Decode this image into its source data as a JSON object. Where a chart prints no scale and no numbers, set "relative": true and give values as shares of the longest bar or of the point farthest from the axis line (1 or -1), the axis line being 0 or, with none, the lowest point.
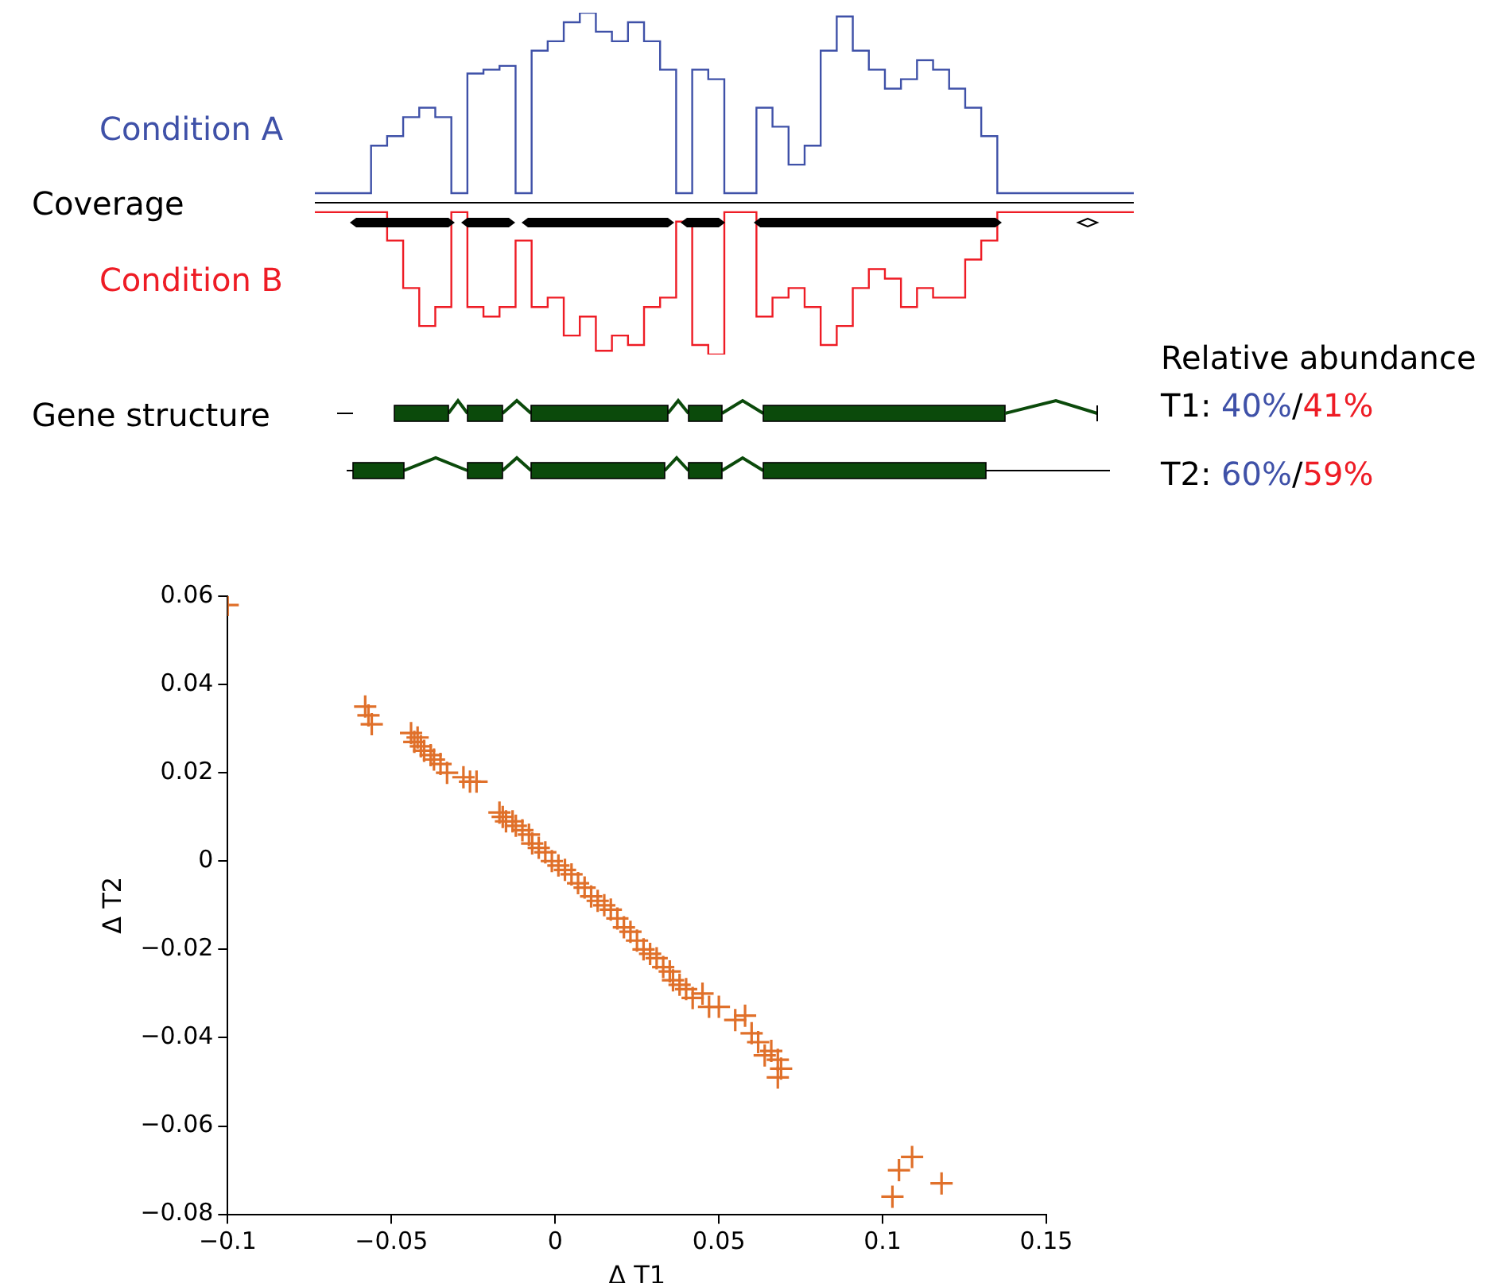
{
  "chart_data": [
    {
      "type": "step",
      "relative": true,
      "legend": false,
      "categories": [
        null,
        null,
        null,
        null,
        null,
        null,
        null,
        null,
        null,
        null,
        null,
        null,
        null,
        null,
        null,
        null,
        null,
        null,
        null,
        null,
        null,
        null,
        null,
        null,
        null,
        null,
        null,
        null,
        null,
        null,
        null,
        null,
        null,
        null,
        null,
        null,
        null,
        null,
        null,
        null,
        null,
        null,
        null,
        null,
        null,
        null,
        null,
        null,
        null,
        null,
        null,
        null
      ],
      "annotations": [
        "Coverage",
        "Gene structure",
        "Relative abundance",
        "T1: 40%/41%",
        "T2: 60%/59%"
      ],
      "series": [
        {
          "name": "Condition A",
          "color": "#3f51a8",
          "values": [
            0.05,
            0.05,
            0.05,
            0.05,
            0.3,
            0.35,
            0.45,
            0.5,
            0.45,
            0.05,
            0.68,
            0.7,
            0.72,
            0.05,
            0.8,
            0.85,
            0.95,
            1,
            0.9,
            0.85,
            0.95,
            0.85,
            0.7,
            0.05,
            0.7,
            0.65,
            0.05,
            0.05,
            0.5,
            0.4,
            0.2,
            0.3,
            0.8,
            0.98,
            0.8,
            0.7,
            0.6,
            0.65,
            0.75,
            0.7,
            0.6,
            0.5,
            0.35,
            0.05,
            0.05,
            0.05,
            0.05,
            0.05,
            0.05,
            0.05,
            0.05,
            0.05
          ]
        },
        {
          "name": "Condition B",
          "color": "#ee1c25",
          "values": [
            -0.05,
            -0.05,
            -0.05,
            -0.05,
            -0.05,
            -0.2,
            -0.45,
            -0.65,
            -0.55,
            -0.05,
            -0.55,
            -0.6,
            -0.55,
            -0.2,
            -0.55,
            -0.5,
            -0.7,
            -0.6,
            -0.78,
            -0.7,
            -0.75,
            -0.55,
            -0.5,
            -0.1,
            -0.75,
            -0.8,
            -0.05,
            -0.05,
            -0.6,
            -0.5,
            -0.45,
            -0.55,
            -0.75,
            -0.65,
            -0.45,
            -0.35,
            -0.4,
            -0.55,
            -0.45,
            -0.5,
            -0.5,
            -0.3,
            -0.2,
            -0.05,
            -0.05,
            -0.05,
            -0.05,
            -0.05,
            -0.05,
            -0.05,
            -0.05,
            -0.05
          ]
        }
      ]
    },
    {
      "type": "scatter",
      "xlabel": "Δ T1",
      "ylabel": "Δ T2",
      "marker": "cross",
      "grid": false,
      "legend": false,
      "xlim": [
        -0.1,
        0.15
      ],
      "xticks": [
        {
          "value": -0.1,
          "label": "−0.1"
        },
        {
          "value": -0.05,
          "label": "−0.05"
        },
        0,
        0.05,
        0.1,
        0.15
      ],
      "ylim": [
        -0.08,
        0.06
      ],
      "yticks": [
        {
          "value": -0.08,
          "label": "−0.08"
        },
        {
          "value": -0.06,
          "label": "−0.06"
        },
        {
          "value": -0.04,
          "label": "−0.04"
        },
        {
          "value": -0.02,
          "label": "−0.02"
        },
        0,
        0.02,
        0.04,
        0.06
      ],
      "series": [
        {
          "color": "#e0702a",
          "x": [
            -0.1,
            -0.058,
            -0.057,
            -0.056,
            -0.044,
            -0.043,
            -0.042,
            -0.041,
            -0.04,
            -0.038,
            -0.037,
            -0.035,
            -0.033,
            -0.028,
            -0.026,
            -0.024,
            -0.017,
            -0.016,
            -0.015,
            -0.013,
            -0.012,
            -0.01,
            -0.008,
            -0.007,
            -0.005,
            -0.003,
            -0.001,
            0.001,
            0.003,
            0.005,
            0.007,
            0.009,
            0.011,
            0.013,
            0.015,
            0.017,
            0.019,
            0.021,
            0.023,
            0.025,
            0.027,
            0.029,
            0.031,
            0.033,
            0.035,
            0.036,
            0.038,
            0.04,
            0.042,
            0.045,
            0.047,
            0.05,
            0.055,
            0.058,
            0.06,
            0.062,
            0.064,
            0.066,
            0.068,
            0.069,
            0.068,
            0.103,
            0.105,
            0.109,
            0.118
          ],
          "values": [
            0.058,
            0.035,
            0.033,
            0.031,
            0.029,
            0.027,
            0.028,
            0.026,
            0.025,
            0.024,
            0.023,
            0.022,
            0.02,
            0.019,
            0.018,
            0.018,
            0.011,
            0.01,
            0.009,
            0.009,
            0.008,
            0.007,
            0.006,
            0.004,
            0.003,
            0.002,
            0,
            -0.001,
            -0.002,
            -0.003,
            -0.005,
            -0.006,
            -0.008,
            -0.009,
            -0.01,
            -0.011,
            -0.013,
            -0.015,
            -0.016,
            -0.018,
            -0.02,
            -0.021,
            -0.022,
            -0.024,
            -0.025,
            -0.027,
            -0.028,
            -0.029,
            -0.031,
            -0.03,
            -0.033,
            -0.033,
            -0.036,
            -0.035,
            -0.039,
            -0.041,
            -0.044,
            -0.043,
            -0.045,
            -0.047,
            -0.049,
            -0.076,
            -0.07,
            -0.067,
            -0.073
          ]
        }
      ]
    }
  ]
}
